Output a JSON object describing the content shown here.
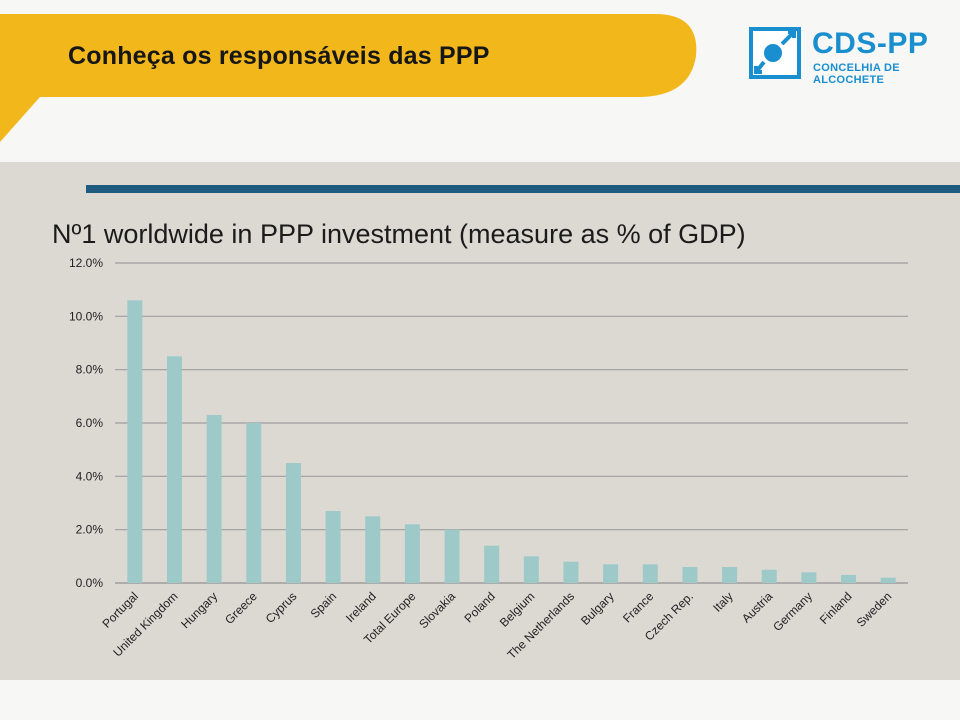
{
  "slide": {
    "title": "Conheça os responsáveis das PPP"
  },
  "logo": {
    "name": "CDS-PP",
    "subtitle": "CONCELHIA DE ALCOCHETE",
    "color": "#1a8fd0"
  },
  "colors": {
    "banner": "#f2b71b",
    "panel": "#dcd9d3",
    "rule": "#1f5a80",
    "bar": "#9dc9c8",
    "grid": "#9e9e9e"
  },
  "chart_data": {
    "type": "bar",
    "title": "Nº1 worldwide in PPP investment (measure as % of GDP)",
    "xlabel": "",
    "ylabel": "",
    "ylim": [
      0,
      12
    ],
    "ytick_values": [
      0,
      2,
      4,
      6,
      8,
      10,
      12
    ],
    "ytick_labels": [
      "0.0%",
      "2.0%",
      "4.0%",
      "6.0%",
      "8.0%",
      "10.0%",
      "12.0%"
    ],
    "grid": true,
    "categories": [
      "Portugal",
      "United Kingdom",
      "Hungary",
      "Greece",
      "Cyprus",
      "Spain",
      "Ireland",
      "Total Europe",
      "Slovakia",
      "Poland",
      "Belgium",
      "The Netherlands",
      "Bulgary",
      "France",
      "Czech Rep.",
      "Italy",
      "Austria",
      "Germany",
      "Finland",
      "Sweden"
    ],
    "values": [
      10.6,
      8.5,
      6.3,
      6.0,
      4.5,
      2.7,
      2.5,
      2.2,
      2.0,
      1.4,
      1.0,
      0.8,
      0.7,
      0.7,
      0.6,
      0.6,
      0.5,
      0.4,
      0.3,
      0.2
    ]
  }
}
